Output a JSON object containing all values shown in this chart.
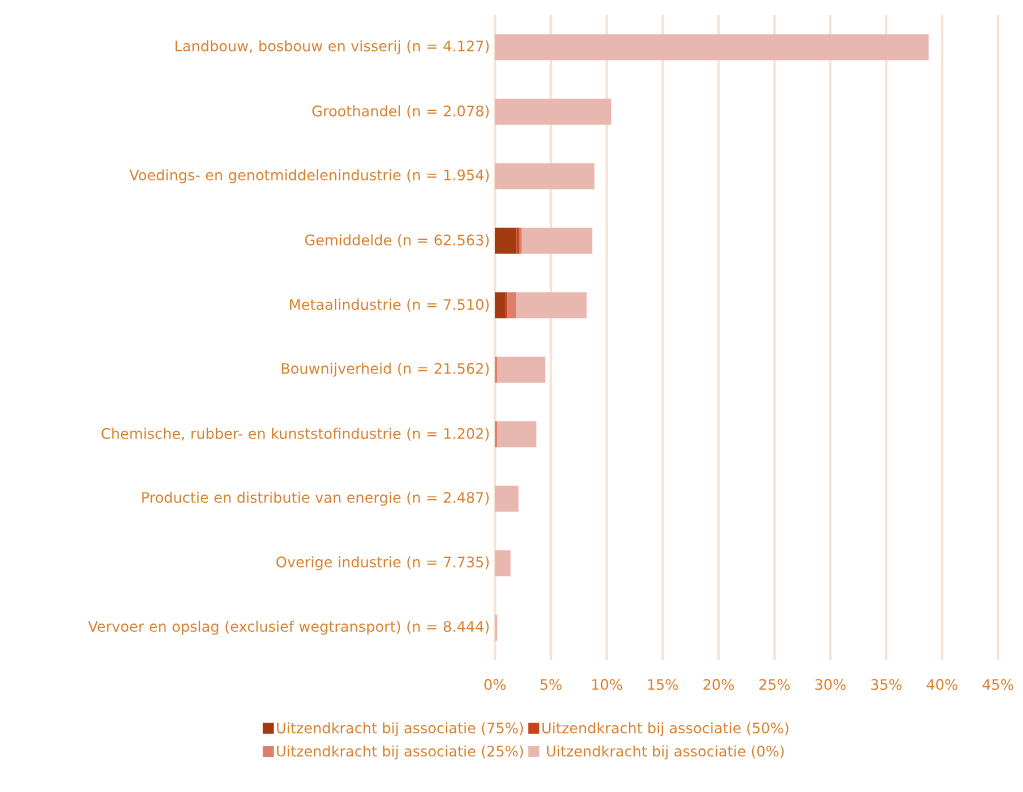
{
  "chart_data": {
    "type": "bar",
    "orientation": "horizontal",
    "stacked": true,
    "categories": [
      "Landbouw, bosbouw en visserij (n = 4.127)",
      "Groothandel (n = 2.078)",
      "Voedings- en genotmiddelenindustrie (n = 1.954)",
      "Gemiddelde (n = 62.563)",
      "Metaalindustrie (n = 7.510)",
      "Bouwnijverheid (n = 21.562)",
      "Chemische, rubber- en kunststofindustrie (n = 1.202)",
      "Productie en distributie van energie (n = 2.487)",
      "Overige industrie (n = 7.735)",
      "Vervoer en opslag (exclusief wegtransport) (n = 8.444)"
    ],
    "series": [
      {
        "name": "Uitzendkracht bij associatie (75%)",
        "color": "#a33a12",
        "values": [
          0,
          0,
          0,
          1.9,
          0.9,
          0,
          0,
          0,
          0,
          0
        ]
      },
      {
        "name": "Uitzendkracht bij associatie (50%)",
        "color": "#c5461a",
        "values": [
          0,
          0,
          0,
          0.3,
          0.2,
          0,
          0,
          0,
          0,
          0
        ]
      },
      {
        "name": "Uitzendkracht bij associatie (25%)",
        "color": "#dc7f6f",
        "values": [
          0,
          0,
          0,
          0.2,
          0.8,
          0.2,
          0.2,
          0,
          0,
          0
        ]
      },
      {
        "name": "Uitzendkracht bij associatie (0%)",
        "color": "#e8b7b0",
        "values": [
          38.8,
          10.4,
          8.9,
          6.3,
          6.3,
          4.3,
          3.5,
          2.1,
          1.4,
          0.2
        ]
      }
    ],
    "xlim": [
      0,
      45
    ],
    "xticks": [
      {
        "value": 0,
        "label": "0%"
      },
      {
        "value": 5,
        "label": "5%"
      },
      {
        "value": 10,
        "label": "10%"
      },
      {
        "value": 15,
        "label": "15%"
      },
      {
        "value": 20,
        "label": "20%"
      },
      {
        "value": 25,
        "label": "25%"
      },
      {
        "value": 30,
        "label": "30%"
      },
      {
        "value": 35,
        "label": "35%"
      },
      {
        "value": 40,
        "label": "40%"
      },
      {
        "value": 45,
        "label": "45%"
      }
    ],
    "grid": "x",
    "legend": "bottom"
  }
}
